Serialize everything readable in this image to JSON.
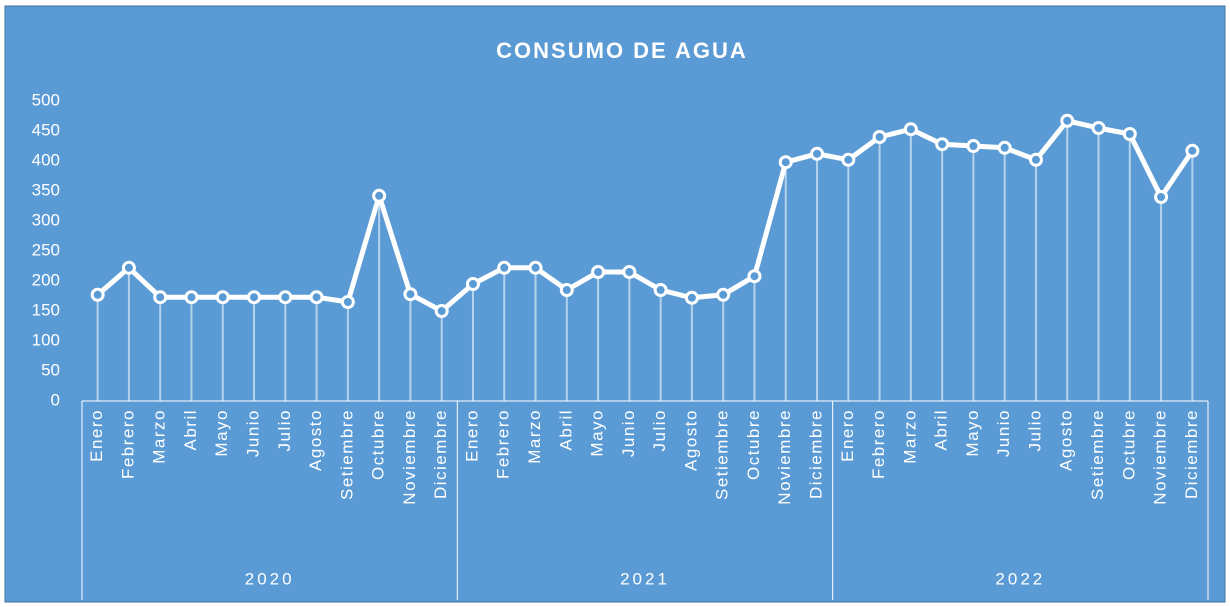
{
  "chart_data": {
    "type": "line",
    "title": "CONSUMO DE AGUA",
    "categories": [
      "Enero",
      "Febrero",
      "Marzo",
      "Abril",
      "Mayo",
      "Junio",
      "Julio",
      "Agosto",
      "Setiembre",
      "Octubre",
      "Noviembre",
      "Diciembre",
      "Enero",
      "Febrero",
      "Marzo",
      "Abril",
      "Mayo",
      "Junio",
      "Julio",
      "Agosto",
      "Setiembre",
      "Octubre",
      "Noviembre",
      "Diciembre",
      "Enero",
      "Febrero",
      "Marzo",
      "Abril",
      "Mayo",
      "Junio",
      "Julio",
      "Agosto",
      "Setiembre",
      "Octubre",
      "Noviembre",
      "Diciembre"
    ],
    "groups": [
      "2020",
      "2021",
      "2022"
    ],
    "values": [
      177,
      222,
      173,
      173,
      173,
      173,
      173,
      173,
      165,
      342,
      178,
      150,
      195,
      222,
      222,
      185,
      215,
      215,
      185,
      172,
      177,
      208,
      398,
      412,
      402,
      440,
      453,
      428,
      425,
      422,
      402,
      467,
      455,
      445,
      340,
      417
    ],
    "color": "#ffffff",
    "ylim": [
      0,
      500
    ],
    "yticks": [
      0,
      50,
      100,
      150,
      200,
      250,
      300,
      350,
      400,
      450,
      500
    ],
    "grid": false
  }
}
